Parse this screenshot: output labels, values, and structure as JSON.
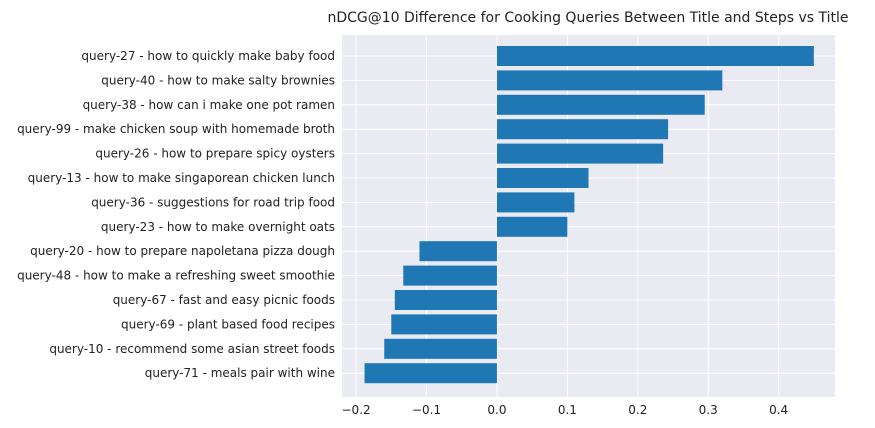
{
  "chart_data": {
    "type": "bar",
    "orientation": "horizontal",
    "title": "nDCG@10 Difference for Cooking Queries Between Title and Steps vs Title",
    "xlabel": "",
    "ylabel": "",
    "xlim": [
      -0.22,
      0.48
    ],
    "x_ticks": [
      -0.2,
      -0.1,
      0.0,
      0.1,
      0.2,
      0.3,
      0.4
    ],
    "x_tick_labels": [
      "−0.2",
      "−0.1",
      "0.0",
      "0.1",
      "0.2",
      "0.3",
      "0.4"
    ],
    "grid": true,
    "bar_color": "#1f77b4",
    "background_color": "#eaeaf2",
    "categories": [
      "query-27 - how to quickly make baby food",
      "query-40 - how to make salty brownies",
      "query-38 - how can i make one pot ramen",
      "query-99 - make chicken soup with homemade broth",
      "query-26 - how to prepare spicy oysters",
      "query-13 - how to make singaporean chicken lunch",
      "query-36 - suggestions for road trip food",
      "query-23 - how to make overnight oats",
      "query-20 - how to prepare napoletana pizza dough",
      "query-48 - how to make a refreshing sweet smoothie",
      "query-67 - fast and easy picnic foods",
      "query-69 - plant based food recipes",
      "query-10 - recommend some asian street foods",
      "query-71 - meals pair with wine"
    ],
    "values": [
      0.45,
      0.32,
      0.295,
      0.243,
      0.236,
      0.13,
      0.11,
      0.1,
      -0.11,
      -0.133,
      -0.145,
      -0.15,
      -0.16,
      -0.188
    ]
  }
}
